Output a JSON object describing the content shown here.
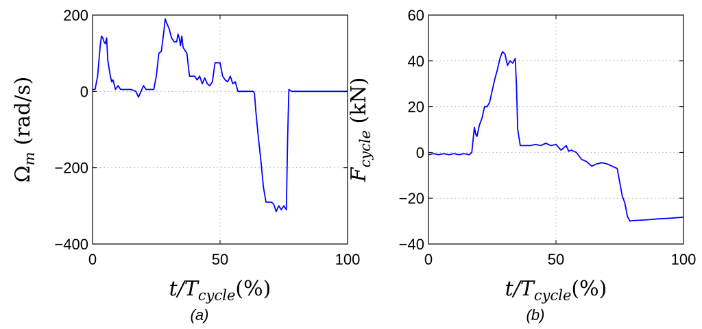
{
  "chart_data": [
    {
      "type": "line",
      "caption": "(a)",
      "xlabel": {
        "main": "t/T",
        "sub": "cycle",
        "tail": "(%)"
      },
      "ylabel": {
        "main": "Ω",
        "sub": "m",
        "tail": " (rad/s)"
      },
      "xlim": [
        0,
        100
      ],
      "ylim": [
        -400,
        200
      ],
      "xticks": [
        0,
        50,
        100
      ],
      "yticks": [
        -400,
        -200,
        0,
        200
      ],
      "xtick_labels": [
        "0",
        "50",
        "100"
      ],
      "ytick_labels": [
        "−400",
        "−200",
        "0",
        "200"
      ],
      "grid": true,
      "color": "#0000ff",
      "series": [
        {
          "x": [
            0,
            1,
            2,
            3,
            3.5,
            4,
            4.5,
            5,
            5.5,
            6,
            7,
            7.5,
            8,
            9,
            10,
            11,
            12,
            15,
            17,
            18,
            19,
            20,
            21,
            24,
            25,
            26,
            27,
            28,
            28.5,
            29,
            30,
            31,
            32,
            33,
            33.5,
            34,
            34.5,
            35,
            35.5,
            36,
            37,
            38,
            40,
            41,
            42,
            43,
            44,
            45,
            46,
            47,
            48,
            49,
            50,
            51,
            52,
            53,
            54,
            55,
            56,
            57,
            58,
            60,
            62,
            63,
            63.5,
            64,
            65,
            66,
            67,
            68,
            69,
            70,
            71,
            72,
            73,
            74,
            75,
            76,
            76.5,
            77,
            78,
            80,
            85,
            90,
            95,
            100
          ],
          "y": [
            5,
            5,
            40,
            120,
            145,
            140,
            130,
            125,
            140,
            80,
            40,
            25,
            30,
            5,
            15,
            5,
            5,
            5,
            0,
            -15,
            0,
            15,
            5,
            5,
            40,
            100,
            105,
            160,
            190,
            180,
            165,
            140,
            130,
            130,
            150,
            140,
            120,
            145,
            115,
            110,
            100,
            40,
            40,
            30,
            40,
            20,
            35,
            20,
            15,
            25,
            75,
            75,
            75,
            40,
            30,
            25,
            40,
            20,
            25,
            0,
            0,
            0,
            0,
            0,
            -5,
            -50,
            -120,
            -180,
            -250,
            -290,
            -290,
            -290,
            -295,
            -315,
            -300,
            -310,
            -300,
            -310,
            -120,
            5,
            0,
            0,
            0,
            0,
            0,
            0
          ]
        }
      ]
    },
    {
      "type": "line",
      "caption": "(b)",
      "xlabel": {
        "main": "t/T",
        "sub": "cycle",
        "tail": "(%)"
      },
      "ylabel": {
        "main": "F",
        "sub": "cycle",
        "tail": "  (kN)"
      },
      "xlim": [
        0,
        100
      ],
      "ylim": [
        -40,
        60
      ],
      "xticks": [
        0,
        50,
        100
      ],
      "yticks": [
        -40,
        -20,
        0,
        20,
        40,
        60
      ],
      "xtick_labels": [
        "0",
        "50",
        "100"
      ],
      "ytick_labels": [
        "−40",
        "−20",
        "0",
        "20",
        "40",
        "60"
      ],
      "grid": true,
      "color": "#0000ff",
      "series": [
        {
          "x": [
            0,
            2,
            4,
            6,
            8,
            10,
            12,
            14,
            16,
            17,
            18,
            18.5,
            19,
            20,
            21,
            22,
            23,
            24,
            25,
            26,
            27,
            28,
            29,
            30,
            31,
            32,
            33,
            34,
            34.5,
            35,
            36,
            37,
            38,
            40,
            42,
            44,
            46,
            48,
            50,
            52,
            54,
            55,
            56,
            58,
            60,
            62,
            64,
            66,
            68,
            70,
            72,
            74,
            76,
            77,
            78,
            79,
            80,
            85,
            90,
            95,
            100
          ],
          "y": [
            -1,
            -0.5,
            -1,
            -0.5,
            -1,
            -0.5,
            -1,
            -0.5,
            -1,
            0,
            11,
            8,
            7,
            12,
            15,
            20,
            20,
            22,
            27,
            32,
            36,
            41,
            44,
            43,
            38,
            40,
            39,
            41,
            30,
            10,
            3,
            3,
            3,
            3,
            3.5,
            3,
            4,
            3,
            3.5,
            1,
            3,
            0.5,
            1,
            0,
            -3,
            -4,
            -6,
            -5,
            -4.5,
            -5,
            -6,
            -7,
            -19,
            -22,
            -28,
            -30,
            -29.8,
            -29.5,
            -29,
            -28.7,
            -28.3
          ]
        }
      ]
    }
  ]
}
